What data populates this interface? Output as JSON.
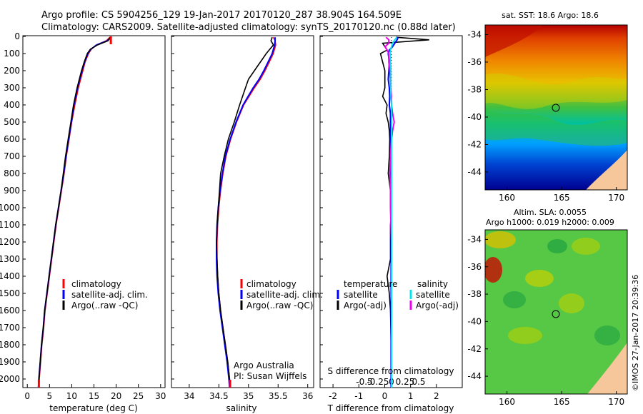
{
  "header": {
    "title_line1": "Argo profile: CS 5904256_129 19-Jan-2017 20170120_287 38.904S 164.509E",
    "title_line2": "Climatology: CARS2009. Satellite-adjusted climatology: synTS_20170120.nc (0.88d later)"
  },
  "credit": "©IMOS 27-Jan-2017 20:39:36",
  "colors": {
    "climatology": "#ff0000",
    "satellite": "#0000ff",
    "argo": "#000000",
    "sal_satellite": "#00e5ee",
    "sal_argo": "#ee00ee"
  },
  "chart_data": [
    {
      "type": "line",
      "xlabel": "temperature (deg C)",
      "ylim": [
        2100,
        0
      ],
      "xlim": [
        -1,
        31
      ],
      "xticks": [
        "0",
        "5",
        "10",
        "15",
        "20",
        "25",
        "30"
      ],
      "yticks": [
        "0",
        "100",
        "200",
        "300",
        "400",
        "500",
        "600",
        "700",
        "800",
        "900",
        "1000",
        "1100",
        "1200",
        "1300",
        "1400",
        "1500",
        "1600",
        "1700",
        "1800",
        "1900",
        "2000"
      ],
      "legend": [
        "climatology",
        "satellite-adj. clim.",
        "Argo(..raw -QC)"
      ],
      "depth": [
        5,
        25,
        50,
        75,
        100,
        150,
        200,
        300,
        400,
        500,
        600,
        700,
        800,
        900,
        1000,
        1100,
        1200,
        1300,
        1400,
        1500,
        1600,
        1700,
        1800,
        1900,
        2000,
        2050
      ],
      "series": [
        {
          "name": "climatology",
          "values": [
            18.6,
            17.8,
            15.5,
            14.4,
            13.8,
            13.0,
            12.5,
            11.5,
            10.7,
            10.0,
            9.4,
            8.8,
            8.3,
            7.7,
            7.1,
            6.5,
            6.0,
            5.5,
            5.0,
            4.5,
            4.0,
            3.7,
            3.3,
            3.0,
            2.7,
            2.6
          ]
        },
        {
          "name": "satellite-adj. clim.",
          "values": [
            18.9,
            18.0,
            15.6,
            14.3,
            13.6,
            12.9,
            12.3,
            11.3,
            10.5,
            9.9,
            9.3,
            8.7,
            8.2,
            7.6,
            7.0,
            6.4,
            5.9,
            5.4,
            4.9,
            4.4,
            3.9,
            3.6,
            3.2,
            2.9,
            2.6,
            2.5
          ]
        },
        {
          "name": "Argo(..raw -QC)",
          "values": [
            18.6,
            18.2,
            15.8,
            14.2,
            13.5,
            12.8,
            12.2,
            11.2,
            10.4,
            9.8,
            9.2,
            8.6,
            8.1,
            7.6,
            7.0,
            6.4,
            5.9,
            5.4,
            4.9,
            4.4,
            3.9,
            3.6,
            3.2,
            2.9,
            2.6,
            2.5
          ]
        }
      ]
    },
    {
      "type": "line",
      "xlabel": "salinity",
      "ylim": [
        2100,
        0
      ],
      "xlim": [
        33.7,
        36.1
      ],
      "xticks": [
        "34",
        "34.5",
        "35",
        "35.5",
        "36"
      ],
      "legend": [
        "climatology",
        "satellite-adj. clim.",
        "Argo(..raw -QC)"
      ],
      "annotation": [
        "Argo Australia",
        "PI: Susan Wijffels"
      ],
      "depth": [
        5,
        25,
        50,
        100,
        150,
        200,
        250,
        300,
        400,
        500,
        600,
        700,
        800,
        900,
        1000,
        1100,
        1200,
        1300,
        1400,
        1500,
        1600,
        1700,
        1800,
        1900,
        2000,
        2050
      ],
      "series": [
        {
          "name": "climatology",
          "values": [
            35.42,
            35.45,
            35.46,
            35.42,
            35.35,
            35.28,
            35.2,
            35.1,
            34.92,
            34.8,
            34.7,
            34.62,
            34.57,
            34.53,
            34.5,
            34.48,
            34.47,
            34.47,
            34.48,
            34.5,
            34.53,
            34.57,
            34.61,
            34.65,
            34.68,
            34.69
          ]
        },
        {
          "name": "satellite-adj. clim.",
          "values": [
            35.45,
            35.45,
            35.44,
            35.4,
            35.33,
            35.26,
            35.18,
            35.08,
            34.91,
            34.79,
            34.69,
            34.61,
            34.56,
            34.52,
            34.49,
            34.47,
            34.46,
            34.46,
            34.47,
            34.49,
            34.52,
            34.56,
            34.6,
            34.64,
            34.67,
            34.68
          ]
        },
        {
          "name": "Argo(..raw -QC)",
          "values": [
            35.4,
            35.38,
            35.42,
            35.3,
            35.2,
            35.1,
            35.0,
            34.95,
            34.85,
            34.76,
            34.66,
            34.59,
            34.53,
            34.51,
            34.49,
            34.47,
            34.46,
            34.47,
            34.48,
            34.5,
            34.53,
            34.57,
            34.61,
            34.65,
            34.68,
            34.69
          ]
        }
      ]
    },
    {
      "type": "line",
      "xlabel": "T difference from climatology",
      "xlabel_top": "S difference from climatology",
      "ylim": [
        2100,
        0
      ],
      "xlim": [
        -2.5,
        3.0
      ],
      "xticks_T": [
        "-2",
        "-1",
        "0",
        "1",
        "2"
      ],
      "xticks_S": [
        "-0.5",
        "-0.25",
        "0",
        "0.25",
        "0.5"
      ],
      "legend_headers": [
        "temperature",
        "salinity"
      ],
      "legend": [
        "satellite",
        "Argo(-adj)",
        "satellite",
        "Argo(-adj)"
      ],
      "depth": [
        5,
        20,
        40,
        60,
        80,
        100,
        150,
        200,
        250,
        300,
        350,
        400,
        450,
        500,
        550,
        600,
        700,
        800,
        900,
        1000,
        1100,
        1200,
        1300,
        1400,
        1500,
        1600,
        1800,
        2000,
        2050
      ],
      "series": [
        {
          "name": "satellite",
          "values": [
            0.3,
            0.25,
            0.15,
            0.05,
            -0.1,
            -0.15,
            -0.1,
            -0.12,
            -0.15,
            -0.1,
            -0.08,
            -0.1,
            -0.05,
            -0.05,
            -0.05,
            -0.04,
            -0.04,
            -0.03,
            -0.03,
            -0.02,
            -0.02,
            -0.02,
            -0.02,
            -0.02,
            -0.02,
            -0.02,
            -0.02,
            -0.02,
            -0.02
          ]
        },
        {
          "name": "Argo(-adj)",
          "values": [
            0.2,
            1.7,
            -0.4,
            -0.3,
            -0.2,
            -0.5,
            -0.4,
            -0.3,
            -0.3,
            -0.3,
            -0.4,
            -0.2,
            -0.25,
            -0.15,
            -0.1,
            -0.08,
            -0.1,
            -0.15,
            -0.05,
            0.0,
            -0.05,
            -0.05,
            -0.05,
            -0.2,
            -0.1,
            -0.05,
            -0.02,
            -0.02,
            -0.02
          ]
        },
        {
          "name": "satellite",
          "values": [
            0.1,
            0.06,
            0.02,
            0.0,
            -0.02,
            -0.02,
            -0.02,
            -0.01,
            -0.01,
            -0.01,
            -0.01,
            0.0,
            0.0,
            0.0,
            0.0,
            0.0,
            0.0,
            0.0,
            0.0,
            0.0,
            0.0,
            0.0,
            0.0,
            0.0,
            0.0,
            0.0,
            0.0,
            0.0,
            0.0
          ]
        },
        {
          "name": "Argo(-adj)",
          "values": [
            -0.1,
            -0.05,
            -0.05,
            -0.12,
            -0.08,
            -0.05,
            -0.05,
            -0.03,
            -0.02,
            -0.01,
            0.0,
            0.0,
            0.02,
            0.05,
            0.02,
            0.0,
            -0.02,
            -0.03,
            -0.02,
            -0.02,
            -0.01,
            0.0,
            0.0,
            0.0,
            0.0,
            0.0,
            0.0,
            0.0,
            0.0
          ]
        }
      ]
    }
  ],
  "maps": {
    "sst": {
      "title": "sat. SST: 18.6 Argo: 18.6",
      "lat_ticks": [
        "-34",
        "-36",
        "-38",
        "-40",
        "-42",
        "-44"
      ],
      "lon_ticks": [
        "160",
        "165",
        "170"
      ]
    },
    "sla": {
      "title_line1": "Altim. SLA: 0.0055",
      "title_line2": "Argo h1000: 0.019 h2000: 0.009",
      "lat_ticks": [
        "-34",
        "-36",
        "-38",
        "-40",
        "-42",
        "-44"
      ],
      "lon_ticks": [
        "160",
        "165",
        "170"
      ]
    },
    "profile_location": {
      "lon": 164.509,
      "lat": -38.904
    }
  }
}
